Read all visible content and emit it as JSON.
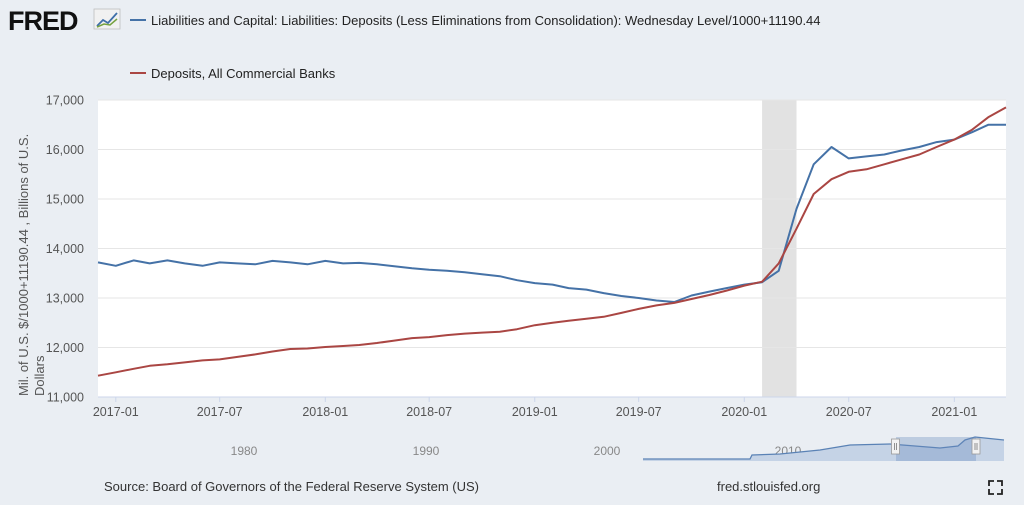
{
  "brand": {
    "logo_text": "FRED"
  },
  "colors": {
    "series1": "#4572a7",
    "series2": "#aa4643",
    "recession": "#e2e2e2",
    "plot_bg": "#ffffff",
    "page_bg": "#eaeef3",
    "navigator": "#c5d3e6"
  },
  "footer": {
    "source": "Source: Board of Governors of the Federal Reserve System (US)",
    "site": "fred.stlouisfed.org",
    "fullscreen_icon": "expand-icon"
  },
  "navigator": {
    "labels": [
      "1980",
      "1990",
      "2000",
      "2010"
    ]
  },
  "chart_data": {
    "type": "line",
    "title": "",
    "xlabel": "",
    "ylabel": "Mil. of U.S. $/1000+11190.44 , Billions of U.S. Dollars",
    "ylim": [
      11000,
      17000
    ],
    "xlim": [
      "2016-12-01",
      "2021-04-01"
    ],
    "y_ticks": [
      "11,000",
      "12,000",
      "13,000",
      "14,000",
      "15,000",
      "16,000",
      "17,000"
    ],
    "x_ticks": [
      "2017-01",
      "2017-07",
      "2018-01",
      "2018-07",
      "2019-01",
      "2019-07",
      "2020-01",
      "2020-07",
      "2021-01"
    ],
    "grid": true,
    "legend": "top",
    "recession": {
      "start": "2020-02-01",
      "end": "2020-04-01"
    },
    "series": [
      {
        "name": "Liabilities and Capital: Liabilities: Deposits (Less Eliminations from Consolidation): Wednesday Level/1000+11190.44",
        "color": "#4572a7",
        "points": [
          [
            "2016-12-01",
            13720
          ],
          [
            "2017-01-01",
            13650
          ],
          [
            "2017-02-01",
            13760
          ],
          [
            "2017-03-01",
            13700
          ],
          [
            "2017-04-01",
            13760
          ],
          [
            "2017-05-01",
            13700
          ],
          [
            "2017-06-01",
            13650
          ],
          [
            "2017-07-01",
            13720
          ],
          [
            "2017-08-01",
            13700
          ],
          [
            "2017-09-01",
            13680
          ],
          [
            "2017-10-01",
            13750
          ],
          [
            "2017-11-01",
            13720
          ],
          [
            "2017-12-01",
            13680
          ],
          [
            "2018-01-01",
            13750
          ],
          [
            "2018-02-01",
            13700
          ],
          [
            "2018-03-01",
            13710
          ],
          [
            "2018-04-01",
            13680
          ],
          [
            "2018-05-01",
            13640
          ],
          [
            "2018-06-01",
            13600
          ],
          [
            "2018-07-01",
            13570
          ],
          [
            "2018-08-01",
            13550
          ],
          [
            "2018-09-01",
            13520
          ],
          [
            "2018-10-01",
            13480
          ],
          [
            "2018-11-01",
            13440
          ],
          [
            "2018-12-01",
            13360
          ],
          [
            "2019-01-01",
            13300
          ],
          [
            "2019-02-01",
            13270
          ],
          [
            "2019-03-01",
            13200
          ],
          [
            "2019-04-01",
            13170
          ],
          [
            "2019-05-01",
            13100
          ],
          [
            "2019-06-01",
            13040
          ],
          [
            "2019-07-01",
            13000
          ],
          [
            "2019-08-01",
            12950
          ],
          [
            "2019-09-01",
            12920
          ],
          [
            "2019-10-01",
            13050
          ],
          [
            "2019-11-01",
            13130
          ],
          [
            "2019-12-01",
            13200
          ],
          [
            "2020-01-01",
            13270
          ],
          [
            "2020-02-01",
            13320
          ],
          [
            "2020-03-01",
            13550
          ],
          [
            "2020-04-01",
            14800
          ],
          [
            "2020-05-01",
            15700
          ],
          [
            "2020-06-01",
            16050
          ],
          [
            "2020-07-01",
            15820
          ],
          [
            "2020-08-01",
            15860
          ],
          [
            "2020-09-01",
            15900
          ],
          [
            "2020-10-01",
            15980
          ],
          [
            "2020-11-01",
            16050
          ],
          [
            "2020-12-01",
            16150
          ],
          [
            "2021-01-01",
            16200
          ],
          [
            "2021-02-01",
            16350
          ],
          [
            "2021-03-01",
            16500
          ],
          [
            "2021-04-01",
            16500
          ]
        ]
      },
      {
        "name": "Deposits, All Commercial Banks",
        "color": "#aa4643",
        "points": [
          [
            "2016-12-01",
            11430
          ],
          [
            "2017-01-01",
            11500
          ],
          [
            "2017-02-01",
            11570
          ],
          [
            "2017-03-01",
            11630
          ],
          [
            "2017-04-01",
            11660
          ],
          [
            "2017-05-01",
            11700
          ],
          [
            "2017-06-01",
            11740
          ],
          [
            "2017-07-01",
            11760
          ],
          [
            "2017-08-01",
            11810
          ],
          [
            "2017-09-01",
            11860
          ],
          [
            "2017-10-01",
            11920
          ],
          [
            "2017-11-01",
            11970
          ],
          [
            "2017-12-01",
            11980
          ],
          [
            "2018-01-01",
            12010
          ],
          [
            "2018-02-01",
            12030
          ],
          [
            "2018-03-01",
            12050
          ],
          [
            "2018-04-01",
            12090
          ],
          [
            "2018-05-01",
            12140
          ],
          [
            "2018-06-01",
            12190
          ],
          [
            "2018-07-01",
            12210
          ],
          [
            "2018-08-01",
            12250
          ],
          [
            "2018-09-01",
            12280
          ],
          [
            "2018-10-01",
            12300
          ],
          [
            "2018-11-01",
            12320
          ],
          [
            "2018-12-01",
            12370
          ],
          [
            "2019-01-01",
            12450
          ],
          [
            "2019-02-01",
            12500
          ],
          [
            "2019-03-01",
            12540
          ],
          [
            "2019-04-01",
            12580
          ],
          [
            "2019-05-01",
            12620
          ],
          [
            "2019-06-01",
            12700
          ],
          [
            "2019-07-01",
            12780
          ],
          [
            "2019-08-01",
            12850
          ],
          [
            "2019-09-01",
            12900
          ],
          [
            "2019-10-01",
            12980
          ],
          [
            "2019-11-01",
            13060
          ],
          [
            "2019-12-01",
            13150
          ],
          [
            "2020-01-01",
            13250
          ],
          [
            "2020-02-01",
            13330
          ],
          [
            "2020-03-01",
            13700
          ],
          [
            "2020-04-01",
            14400
          ],
          [
            "2020-05-01",
            15100
          ],
          [
            "2020-06-01",
            15400
          ],
          [
            "2020-07-01",
            15550
          ],
          [
            "2020-08-01",
            15600
          ],
          [
            "2020-09-01",
            15700
          ],
          [
            "2020-10-01",
            15800
          ],
          [
            "2020-11-01",
            15900
          ],
          [
            "2020-12-01",
            16050
          ],
          [
            "2021-01-01",
            16200
          ],
          [
            "2021-02-01",
            16400
          ],
          [
            "2021-03-01",
            16650
          ],
          [
            "2021-04-01",
            16850
          ]
        ]
      }
    ]
  }
}
